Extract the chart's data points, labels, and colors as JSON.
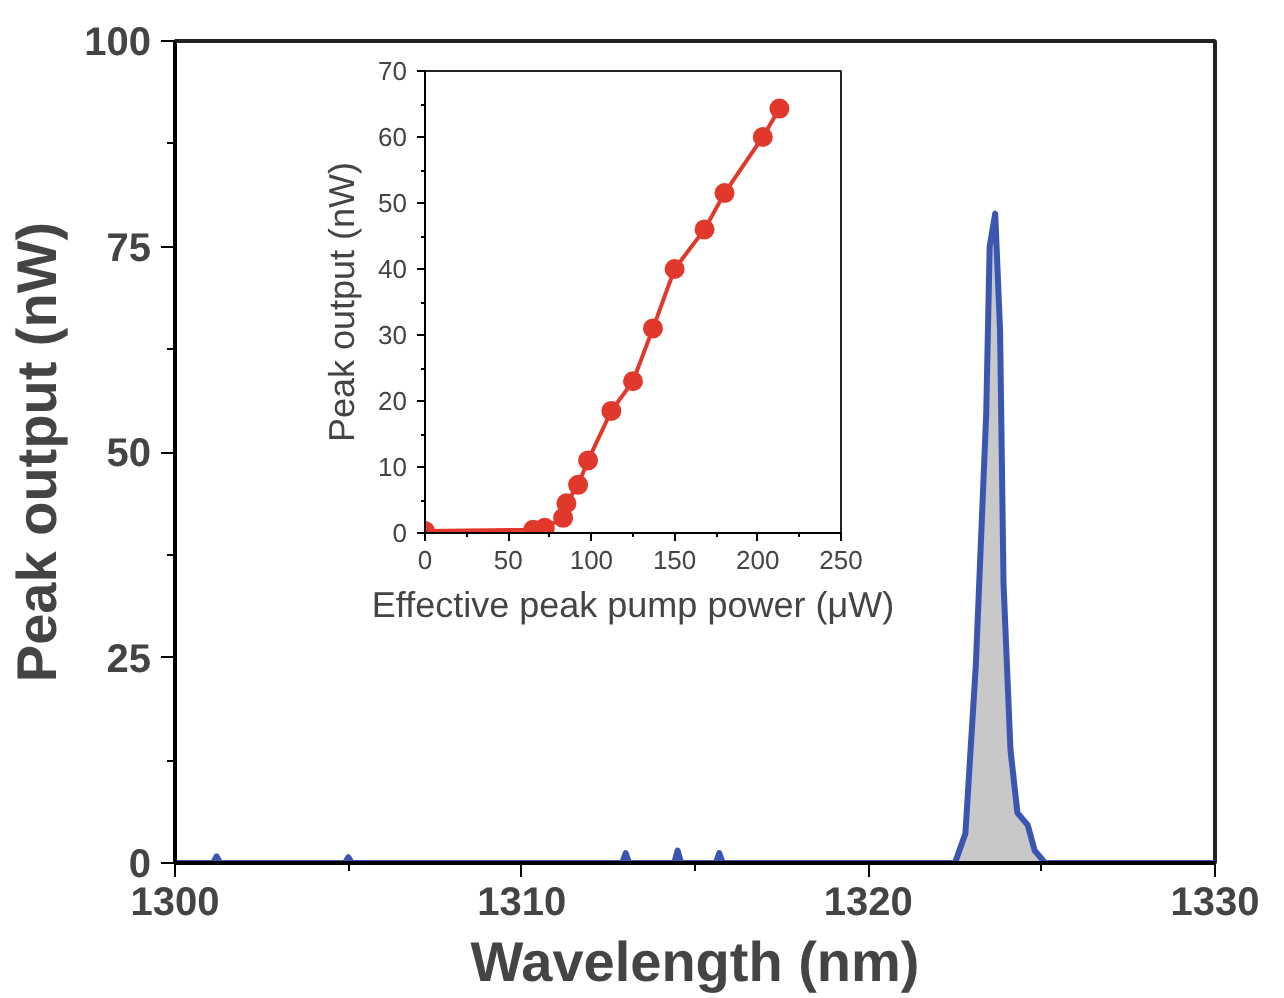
{
  "chart_data": [
    {
      "type": "area",
      "xlabel": "Wavelength (nm)",
      "ylabel": "Peak output (nW)",
      "xlim": [
        1300,
        1330
      ],
      "xticks": [
        1300,
        {
          "value": 1305,
          "label": null
        },
        1310,
        {
          "value": 1315,
          "label": null
        },
        1320,
        {
          "value": 1325,
          "label": null
        },
        1330
      ],
      "ylim": [
        0,
        100
      ],
      "yticks": [
        0,
        {
          "value": 12.5,
          "label": null
        },
        25,
        {
          "value": 37.5,
          "label": null
        },
        50,
        {
          "value": 62.5,
          "label": null
        },
        75,
        {
          "value": 87.5,
          "label": null
        },
        100
      ],
      "grid": false,
      "series": [
        {
          "color": "#3b55b0",
          "x": [
            1300,
            1301.1,
            1301.2,
            1301.3,
            1304.9,
            1305,
            1305.1,
            1312.9,
            1313,
            1313.1,
            1314.4,
            1314.5,
            1314.6,
            1315.6,
            1315.7,
            1315.8,
            1322.5,
            1322.8,
            1323.1,
            1323.4,
            1323.5,
            1323.66,
            1323.8,
            1323.9,
            1324.1,
            1324.3,
            1324.6,
            1324.8,
            1325.1,
            1330
          ],
          "values": [
            0,
            0,
            0.8,
            0,
            0,
            0.7,
            0,
            0,
            1.2,
            0,
            0,
            1.5,
            0,
            0,
            1.2,
            0,
            0,
            3.6,
            24,
            54.6,
            75,
            79,
            64.8,
            34,
            13.8,
            6.1,
            4.6,
            1.5,
            0,
            0
          ]
        }
      ]
    },
    {
      "type": "line",
      "marker": "circle",
      "xlabel": "Effective peak pump power (μW)",
      "ylabel": "Peak output (nW)",
      "xlim": [
        0,
        250
      ],
      "xticks": [
        0,
        {
          "value": 25,
          "label": null
        },
        50,
        {
          "value": 75,
          "label": null
        },
        100,
        {
          "value": 125,
          "label": null
        },
        150,
        {
          "value": 175,
          "label": null
        },
        200,
        {
          "value": 225,
          "label": null
        },
        250
      ],
      "ylim": [
        0,
        70
      ],
      "yticks": [
        0,
        {
          "value": 5,
          "label": null
        },
        10,
        {
          "value": 15,
          "label": null
        },
        20,
        {
          "value": 25,
          "label": null
        },
        30,
        {
          "value": 35,
          "label": null
        },
        40,
        {
          "value": 45,
          "label": null
        },
        50,
        {
          "value": 55,
          "label": null
        },
        60,
        {
          "value": 65,
          "label": null
        },
        70
      ],
      "grid": false,
      "series": [
        {
          "color": "#e0392b",
          "x": [
            0,
            65,
            72,
            83,
            85,
            92,
            98,
            112,
            125,
            137,
            150,
            168,
            180,
            203,
            213
          ],
          "values": [
            0.3,
            0.5,
            0.8,
            2.3,
            4.5,
            7.3,
            11,
            18.5,
            23,
            31,
            40,
            46,
            51.5,
            60,
            64.3
          ]
        }
      ]
    }
  ]
}
